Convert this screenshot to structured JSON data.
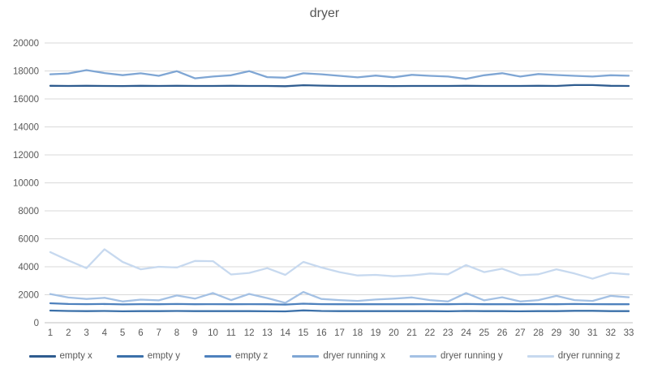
{
  "chart_data": {
    "type": "line",
    "title": "dryer",
    "xlabel": "",
    "ylabel": "",
    "ylim": [
      0,
      20000
    ],
    "ytick_step": 2000,
    "y_ticks": [
      "0",
      "2000",
      "4000",
      "6000",
      "8000",
      "10000",
      "12000",
      "14000",
      "16000",
      "18000",
      "20000"
    ],
    "x": [
      1,
      2,
      3,
      4,
      5,
      6,
      7,
      8,
      9,
      10,
      11,
      12,
      13,
      14,
      15,
      16,
      17,
      18,
      19,
      20,
      21,
      22,
      23,
      24,
      25,
      26,
      27,
      28,
      29,
      30,
      31,
      32,
      33
    ],
    "grid": true,
    "legend_position": "bottom",
    "series": [
      {
        "name": "empty x",
        "color": "#2F5C8F",
        "values": [
          16940,
          16930,
          16940,
          16930,
          16920,
          16940,
          16930,
          16940,
          16930,
          16930,
          16940,
          16930,
          16930,
          16910,
          16980,
          16950,
          16930,
          16930,
          16930,
          16920,
          16930,
          16930,
          16930,
          16940,
          16930,
          16930,
          16930,
          16940,
          16930,
          16990,
          16990,
          16940,
          16930
        ]
      },
      {
        "name": "empty y",
        "color": "#3B70A9",
        "values": [
          870,
          840,
          830,
          840,
          820,
          830,
          830,
          840,
          830,
          830,
          830,
          830,
          820,
          810,
          880,
          840,
          830,
          830,
          830,
          830,
          830,
          830,
          820,
          840,
          830,
          830,
          820,
          830,
          830,
          850,
          850,
          830,
          830
        ]
      },
      {
        "name": "empty z",
        "color": "#4E81BD",
        "values": [
          1390,
          1340,
          1330,
          1340,
          1310,
          1330,
          1320,
          1340,
          1320,
          1330,
          1320,
          1330,
          1320,
          1300,
          1360,
          1330,
          1320,
          1320,
          1320,
          1320,
          1320,
          1330,
          1320,
          1340,
          1320,
          1320,
          1320,
          1330,
          1320,
          1340,
          1330,
          1320,
          1320
        ]
      },
      {
        "name": "dryer running x",
        "color": "#7FA6D4",
        "values": [
          17760,
          17820,
          18060,
          17850,
          17700,
          17830,
          17650,
          17980,
          17470,
          17600,
          17690,
          17990,
          17560,
          17520,
          17830,
          17760,
          17650,
          17540,
          17670,
          17550,
          17720,
          17650,
          17600,
          17430,
          17690,
          17840,
          17600,
          17780,
          17710,
          17650,
          17600,
          17690,
          17660
        ]
      },
      {
        "name": "dryer running y",
        "color": "#A4C1E4",
        "values": [
          2050,
          1800,
          1700,
          1780,
          1520,
          1650,
          1600,
          1950,
          1720,
          2120,
          1620,
          2060,
          1760,
          1420,
          2200,
          1700,
          1620,
          1560,
          1660,
          1720,
          1810,
          1620,
          1520,
          2120,
          1600,
          1820,
          1520,
          1620,
          1920,
          1620,
          1560,
          1920,
          1820
        ]
      },
      {
        "name": "dryer running z",
        "color": "#C7D9EF",
        "values": [
          5050,
          4450,
          3900,
          5250,
          4350,
          3820,
          4000,
          3950,
          4420,
          4400,
          3450,
          3560,
          3900,
          3420,
          4350,
          3950,
          3620,
          3380,
          3420,
          3320,
          3380,
          3520,
          3460,
          4120,
          3620,
          3860,
          3400,
          3460,
          3820,
          3520,
          3150,
          3560,
          3460
        ]
      }
    ],
    "colors": {
      "grid_line": "#D9D9D9",
      "axis_line": "#BFBFBF",
      "tick_text": "#595959",
      "title_text": "#555555"
    }
  }
}
